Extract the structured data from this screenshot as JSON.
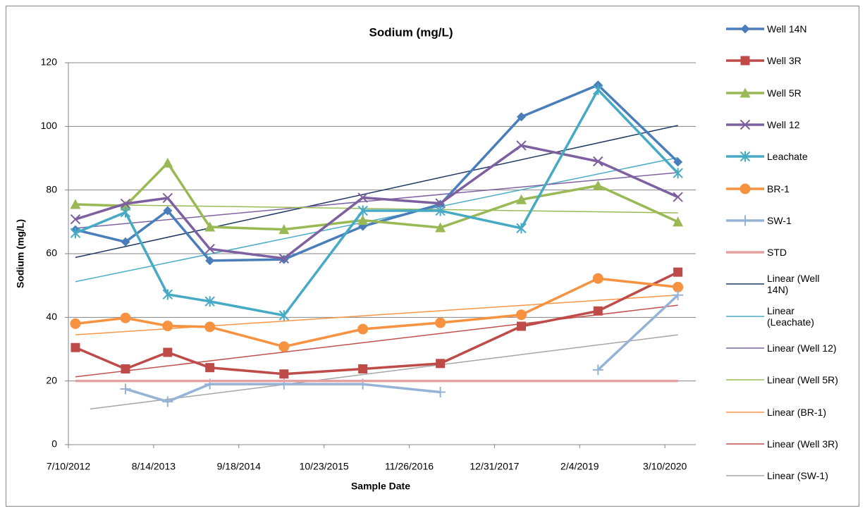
{
  "chart_data": {
    "type": "line",
    "title": "Sodium (mg/L)",
    "x_label": "Sample Date",
    "y_label": "Sodium  (mg/L)",
    "x": [
      "2012-08-12",
      "2013-04-04",
      "2013-10-19",
      "2014-05-05",
      "2015-04-18",
      "2016-04-22",
      "2017-04-21",
      "2018-05-06",
      "2019-05-01",
      "2020-05-10"
    ],
    "xlim": [
      "2012-07-10",
      "2020-08-02"
    ],
    "xticks": [
      {
        "value": "2012-07-10",
        "label": "7/10/2012"
      },
      {
        "value": "2013-08-14",
        "label": "8/14/2013"
      },
      {
        "value": "2014-09-18",
        "label": "9/18/2014"
      },
      {
        "value": "2015-10-23",
        "label": "10/23/2015"
      },
      {
        "value": "2016-11-26",
        "label": "11/26/2016"
      },
      {
        "value": "2017-12-31",
        "label": "12/31/2017"
      },
      {
        "value": "2019-02-04",
        "label": "2/4/2019"
      },
      {
        "value": "2020-03-10",
        "label": "3/10/2020"
      }
    ],
    "ylim": [
      0,
      120
    ],
    "yticks": [
      0,
      20,
      40,
      60,
      80,
      100,
      120
    ],
    "grid": true,
    "legend": "right",
    "series": [
      {
        "name": "Well 14N",
        "color": "#4a7ebb",
        "marker": "diamond",
        "values": [
          67.5,
          63.7,
          73.5,
          57.8,
          58.2,
          68.6,
          75.5,
          103,
          113,
          88.8
        ]
      },
      {
        "name": "Well 3R",
        "color": "#be4b48",
        "marker": "square",
        "values": [
          30.5,
          23.8,
          29,
          24.2,
          22.2,
          23.8,
          25.5,
          37.2,
          42,
          54.2
        ]
      },
      {
        "name": "Well 5R",
        "color": "#98b954",
        "marker": "triangle",
        "values": [
          75.5,
          75,
          88.5,
          68.4,
          67.6,
          70.5,
          68.2,
          77,
          81.4,
          70
        ]
      },
      {
        "name": "Well 12",
        "color": "#7d60a0",
        "marker": "x",
        "values": [
          70.8,
          75.7,
          77.5,
          61.5,
          58.5,
          77.6,
          75.8,
          94,
          89,
          77.8
        ]
      },
      {
        "name": "Leachate",
        "color": "#46aac5",
        "marker": "star",
        "values": [
          66.5,
          73,
          47.2,
          45,
          40.6,
          73.5,
          73.5,
          68,
          111.5,
          85.3
        ]
      },
      {
        "name": "BR-1",
        "color": "#f69240",
        "marker": "circle",
        "values": [
          38,
          39.8,
          37.3,
          37,
          30.8,
          36.3,
          38.3,
          40.8,
          52.2,
          49.5
        ]
      },
      {
        "name": "SW-1",
        "color": "#95b3d7",
        "marker": "plus",
        "values": [
          null,
          17.5,
          13.5,
          19,
          19,
          19,
          16.5,
          null,
          23.5,
          47
        ]
      },
      {
        "name": "STD",
        "color": "#e6a0a0",
        "marker": "none",
        "values": [
          20,
          20,
          20,
          20,
          20,
          20,
          20,
          20,
          20,
          20
        ]
      }
    ],
    "trendlines": [
      {
        "name": "Linear (Well 14N)",
        "color": "#1f3864",
        "x": [
          "2012-08-12",
          "2020-05-10"
        ],
        "values": [
          58.8,
          100.3
        ]
      },
      {
        "name": "Linear (Leachate)",
        "color": "#4bacc6",
        "x": [
          "2012-08-12",
          "2020-05-10"
        ],
        "values": [
          51.2,
          90.2
        ]
      },
      {
        "name": "Linear (Well 12)",
        "color": "#7f64a2",
        "x": [
          "2012-08-12",
          "2020-05-10"
        ],
        "values": [
          68,
          85.5
        ]
      },
      {
        "name": "Linear (Well 5R)",
        "color": "#9bbb59",
        "x": [
          "2012-08-12",
          "2020-05-10"
        ],
        "values": [
          75.5,
          72.8
        ]
      },
      {
        "name": "Linear (BR-1)",
        "color": "#f79646",
        "x": [
          "2012-08-12",
          "2020-05-10"
        ],
        "values": [
          34.5,
          47
        ]
      },
      {
        "name": "Linear (Well 3R)",
        "color": "#c0504d",
        "x": [
          "2012-08-12",
          "2020-05-10"
        ],
        "values": [
          21.3,
          43.8
        ]
      },
      {
        "name": "Linear (SW-1)",
        "color": "#a6a6a6",
        "x": [
          "2012-10-20",
          "2020-05-10"
        ],
        "values": [
          11.2,
          34.5
        ]
      }
    ]
  }
}
